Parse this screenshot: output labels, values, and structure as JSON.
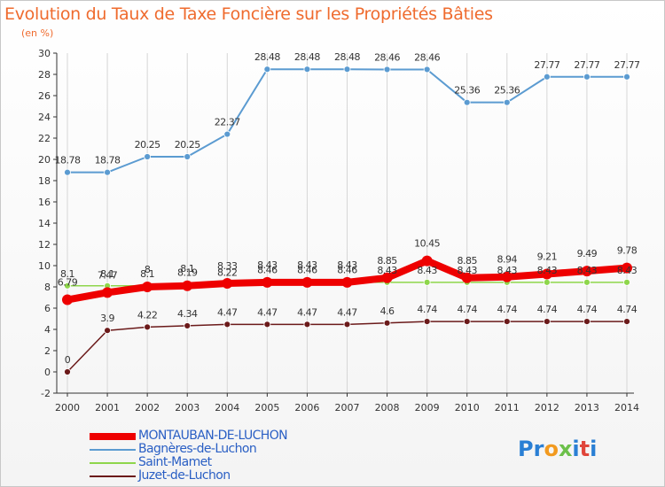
{
  "title": "Evolution du Taux de Taxe Foncière sur les Propriétés Bâties",
  "unit": "(en %)",
  "logo": [
    "P",
    "r",
    "o",
    "x",
    "i",
    "t",
    "i"
  ],
  "logo_colors": [
    "#2a7fd4",
    "#2a7fd4",
    "#f29a1f",
    "#6cc04a",
    "#2a7fd4",
    "#e0453a",
    "#2a7fd4"
  ],
  "colors": {
    "axis": "#333333",
    "grid": "#d6d6d6",
    "tick": "#333333",
    "legend_text": "#2a5fc4"
  },
  "chart_data": {
    "type": "line",
    "title": "Evolution du Taux de Taxe Foncière sur les Propriétés Bâties",
    "ylabel": "(en %)",
    "xlabel": "",
    "x": [
      "2000",
      "2001",
      "2002",
      "2003",
      "2004",
      "2005",
      "2006",
      "2007",
      "2008",
      "2009",
      "2010",
      "2011",
      "2012",
      "2013",
      "2014"
    ],
    "ylim": [
      -2,
      30
    ],
    "yticks": [
      -2,
      0,
      2,
      4,
      6,
      8,
      10,
      12,
      14,
      16,
      18,
      20,
      22,
      24,
      26,
      28,
      30
    ],
    "grid": "vertical",
    "legend": "bottom-left",
    "series": [
      {
        "name": "MONTAUBAN-DE-LUCHON",
        "color": "#ee0000",
        "values": [
          6.79,
          7.47,
          8.0,
          8.1,
          8.33,
          8.43,
          8.43,
          8.43,
          8.85,
          10.45,
          8.85,
          8.94,
          9.21,
          9.49,
          9.78
        ],
        "labels": [
          "6.79",
          "7.47",
          "8",
          "8.1",
          "8.33",
          "8.43",
          "8.43",
          "8.43",
          "8.85",
          "10.45",
          "8.85",
          "8.94",
          "9.21",
          "9.49",
          "9.78"
        ]
      },
      {
        "name": "Bagnères-de-Luchon",
        "color": "#5b9bd1",
        "values": [
          18.78,
          18.78,
          20.25,
          20.25,
          22.37,
          28.48,
          28.48,
          28.48,
          28.46,
          28.46,
          25.36,
          25.36,
          27.77,
          27.77,
          27.77
        ],
        "labels": [
          "18.78",
          "18.78",
          "20.25",
          "20.25",
          "22.37",
          "28.48",
          "28.48",
          "28.48",
          "28.46",
          "28.46",
          "25.36",
          "25.36",
          "27.77",
          "27.77",
          "27.77"
        ]
      },
      {
        "name": "Saint-Mamet",
        "color": "#8ed64b",
        "values": [
          8.1,
          8.1,
          8.1,
          8.19,
          8.22,
          8.46,
          8.46,
          8.46,
          8.43,
          8.43,
          8.43,
          8.43,
          8.43,
          8.43,
          8.43
        ],
        "labels": [
          "8.1",
          "8.1",
          "8.1",
          "8.19",
          "8.22",
          "8.46",
          "8.46",
          "8.46",
          "8.43",
          "8.43",
          "8.43",
          "8.43",
          "8.43",
          "8.43",
          "8.43"
        ]
      },
      {
        "name": "Juzet-de-Luchon",
        "color": "#6b1a1a",
        "values": [
          0,
          3.9,
          4.22,
          4.34,
          4.47,
          4.47,
          4.47,
          4.47,
          4.6,
          4.74,
          4.74,
          4.74,
          4.74,
          4.74,
          4.74
        ],
        "labels": [
          "0",
          "3.9",
          "4.22",
          "4.34",
          "4.47",
          "4.47",
          "4.47",
          "4.47",
          "4.6",
          "4.74",
          "4.74",
          "4.74",
          "4.74",
          "4.74",
          "4.74"
        ]
      }
    ]
  }
}
